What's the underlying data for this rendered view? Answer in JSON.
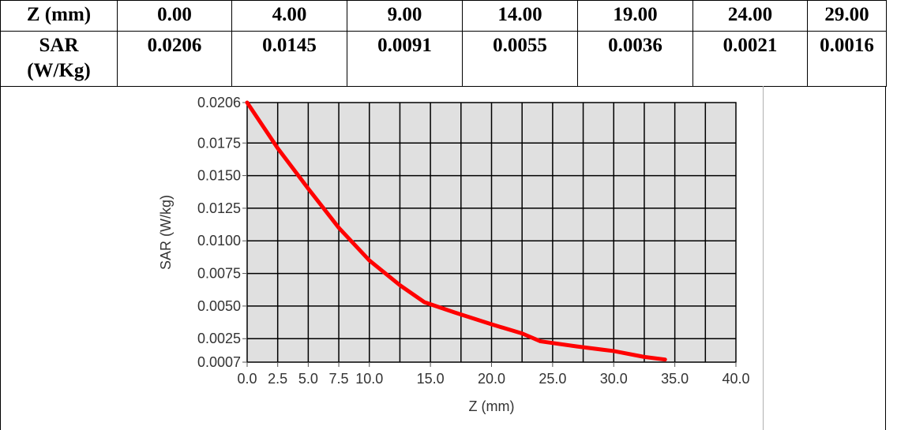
{
  "table": {
    "row1": {
      "header": "Z (mm)",
      "values": [
        "0.00",
        "4.00",
        "9.00",
        "14.00",
        "19.00",
        "24.00",
        "29.00"
      ]
    },
    "row2": {
      "header_line1": "SAR",
      "header_line2": "(W/Kg)",
      "values": [
        "0.0206",
        "0.0145",
        "0.0091",
        "0.0055",
        "0.0036",
        "0.0021",
        "0.0016"
      ]
    }
  },
  "chart_data": {
    "type": "line",
    "xlabel": "Z (mm)",
    "ylabel": "SAR (W/kg)",
    "xlim": [
      0,
      40
    ],
    "ylim": [
      0.0007,
      0.0206
    ],
    "x_ticks": [
      "0.0",
      "2.5",
      "5.0",
      "7.5",
      "10.0",
      "15.0",
      "20.0",
      "25.0",
      "30.0",
      "35.0",
      "40.0"
    ],
    "y_ticks": [
      "0.0206",
      "0.0175",
      "0.0150",
      "0.0125",
      "0.0100",
      "0.0075",
      "0.0050",
      "0.0025",
      "0.0007"
    ],
    "grid": true,
    "series": [
      {
        "color": "#ff0000",
        "x": [
          0,
          2.5,
          5,
          7.5,
          10,
          12.5,
          14.5,
          17,
          20,
          22.5,
          24,
          27,
          30,
          32.5,
          34.2
        ],
        "y": [
          0.0206,
          0.0171,
          0.014,
          0.011,
          0.0085,
          0.0066,
          0.0053,
          0.0045,
          0.0036,
          0.0029,
          0.0023,
          0.0019,
          0.00155,
          0.0011,
          0.0009
        ]
      }
    ]
  }
}
